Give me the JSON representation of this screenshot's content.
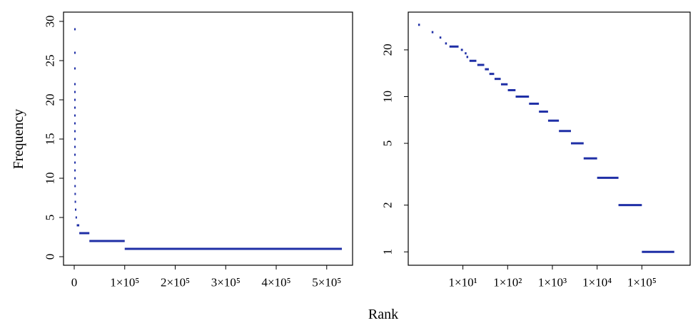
{
  "figure": {
    "shared_xlabel": "Rank",
    "series_color": "#1f2fa6"
  },
  "chart_data": [
    {
      "type": "scatter",
      "title": "",
      "xlabel": "",
      "ylabel": "Frequency",
      "x_scale": "linear",
      "y_scale": "linear",
      "xlim": [
        0,
        530000
      ],
      "ylim": [
        0,
        30
      ],
      "x_ticks": [
        0,
        100000,
        200000,
        300000,
        400000,
        500000
      ],
      "x_tick_labels": [
        "0",
        "1×10⁵",
        "2×10⁵",
        "3×10⁵",
        "4×10⁵",
        "5×10⁵"
      ],
      "y_ticks": [
        0,
        5,
        10,
        15,
        20,
        25,
        30
      ],
      "y_tick_labels": [
        "0",
        "5",
        "10",
        "15",
        "20",
        "25",
        "30"
      ],
      "grid": false,
      "segments": [
        {
          "freq": 29,
          "x_start": 1,
          "x_end": 1
        },
        {
          "freq": 26,
          "x_start": 2,
          "x_end": 2
        },
        {
          "freq": 24,
          "x_start": 3,
          "x_end": 3
        },
        {
          "freq": 22,
          "x_start": 4,
          "x_end": 4
        },
        {
          "freq": 21,
          "x_start": 5,
          "x_end": 8
        },
        {
          "freq": 20,
          "x_start": 9,
          "x_end": 10
        },
        {
          "freq": 19,
          "x_start": 11,
          "x_end": 11
        },
        {
          "freq": 18,
          "x_start": 12,
          "x_end": 13
        },
        {
          "freq": 17,
          "x_start": 14,
          "x_end": 20
        },
        {
          "freq": 16,
          "x_start": 21,
          "x_end": 30
        },
        {
          "freq": 15,
          "x_start": 31,
          "x_end": 38
        },
        {
          "freq": 14,
          "x_start": 39,
          "x_end": 50
        },
        {
          "freq": 13,
          "x_start": 51,
          "x_end": 70
        },
        {
          "freq": 12,
          "x_start": 71,
          "x_end": 100
        },
        {
          "freq": 11,
          "x_start": 101,
          "x_end": 150
        },
        {
          "freq": 10,
          "x_start": 151,
          "x_end": 300
        },
        {
          "freq": 9,
          "x_start": 301,
          "x_end": 500
        },
        {
          "freq": 8,
          "x_start": 501,
          "x_end": 800
        },
        {
          "freq": 7,
          "x_start": 801,
          "x_end": 1400
        },
        {
          "freq": 6,
          "x_start": 1401,
          "x_end": 2600
        },
        {
          "freq": 5,
          "x_start": 2601,
          "x_end": 5000
        },
        {
          "freq": 4,
          "x_start": 5001,
          "x_end": 10000
        },
        {
          "freq": 3,
          "x_start": 10001,
          "x_end": 30000
        },
        {
          "freq": 2,
          "x_start": 30001,
          "x_end": 100000
        },
        {
          "freq": 1,
          "x_start": 100001,
          "x_end": 530000
        }
      ]
    },
    {
      "type": "scatter",
      "title": "",
      "xlabel": "",
      "ylabel": "",
      "x_scale": "log",
      "y_scale": "log",
      "xlim": [
        0.6,
        1200000
      ],
      "ylim": [
        0.82,
        35
      ],
      "x_ticks": [
        10,
        100,
        1000,
        10000,
        100000
      ],
      "x_tick_labels": [
        "1×10¹",
        "1×10²",
        "1×10³",
        "1×10⁴",
        "1×10⁵"
      ],
      "y_ticks": [
        1,
        2,
        5,
        10,
        20
      ],
      "y_tick_labels": [
        "1",
        "2",
        "5",
        "10",
        "20"
      ],
      "grid": false
    }
  ]
}
